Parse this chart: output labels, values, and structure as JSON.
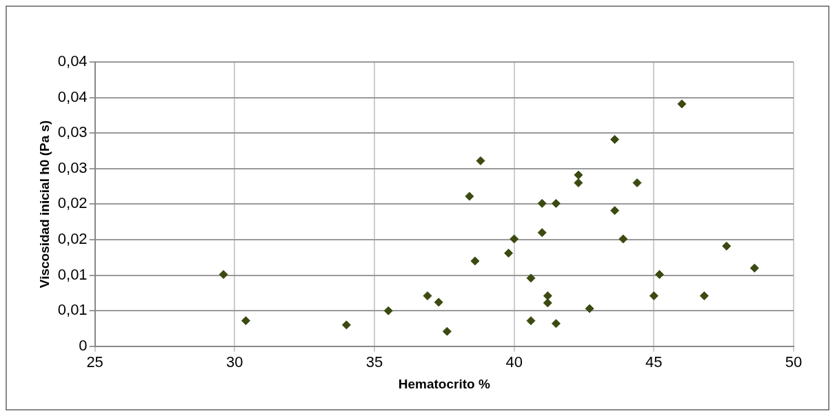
{
  "chart_data": {
    "type": "scatter",
    "xlabel": "Hematocrito %",
    "ylabel": "Viscosidad inicial h0 (Pa s)",
    "x": [
      29.6,
      30.4,
      34.0,
      35.5,
      36.9,
      37.3,
      37.6,
      38.4,
      38.6,
      38.8,
      39.8,
      40.0,
      40.6,
      40.6,
      41.0,
      41.0,
      41.2,
      41.2,
      41.5,
      41.5,
      42.3,
      42.3,
      42.7,
      43.6,
      43.6,
      43.9,
      44.4,
      45.0,
      45.2,
      46.0,
      46.8,
      47.6,
      48.6
    ],
    "values": [
      0.0101,
      0.0036,
      0.003,
      0.005,
      0.0071,
      0.0062,
      0.0021,
      0.0211,
      0.012,
      0.0261,
      0.0131,
      0.0151,
      0.0096,
      0.0036,
      0.0201,
      0.016,
      0.0071,
      0.0061,
      0.0201,
      0.0032,
      0.0241,
      0.023,
      0.0053,
      0.0291,
      0.0191,
      0.0151,
      0.023,
      0.0071,
      0.0101,
      0.0341,
      0.0071,
      0.0141,
      0.011
    ],
    "color": "#3b4a10",
    "marker": "diamond",
    "grid": true,
    "legend": false,
    "xlim": [
      25,
      50
    ],
    "xticks": [
      25,
      30,
      35,
      40,
      45,
      50
    ],
    "ylim": [
      0,
      0.04
    ],
    "yticks": [
      0,
      {
        "value": 0.005,
        "label": "0,01"
      },
      {
        "value": 0.01,
        "label": "0,01"
      },
      {
        "value": 0.015,
        "label": "0,02"
      },
      {
        "value": 0.02,
        "label": "0,02"
      },
      {
        "value": 0.025,
        "label": "0,03"
      },
      {
        "value": 0.03,
        "label": "0,03"
      },
      {
        "value": 0.035,
        "label": "0,04"
      },
      {
        "value": 0.04,
        "label": "0,04"
      }
    ]
  }
}
